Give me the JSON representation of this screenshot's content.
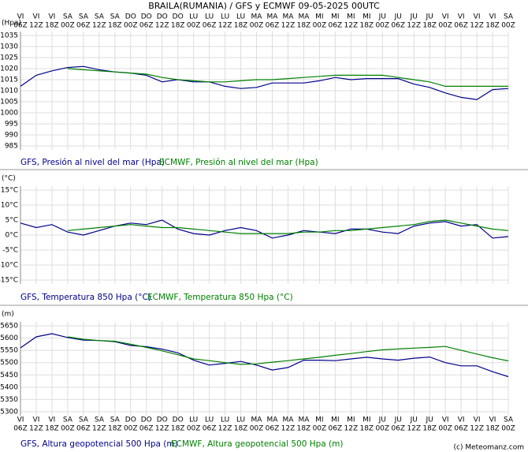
{
  "title": "BRAILA(RUMANIA) / GFS y ECMWF 09-05-2025 00UTC",
  "credit": "(c) Meteomanz.com",
  "x_days": [
    "VI",
    "VI",
    "VI",
    "SA",
    "SA",
    "SA",
    "SA",
    "DO",
    "DO",
    "DO",
    "DO",
    "LU",
    "LU",
    "LU",
    "LU",
    "MA",
    "MA",
    "MA",
    "MA",
    "MI",
    "MI",
    "MI",
    "MI",
    "JU",
    "JU",
    "JU",
    "JU",
    "VI",
    "VI",
    "VI",
    "VI",
    "SA"
  ],
  "x_hours": [
    "06Z",
    "12Z",
    "18Z",
    "00Z",
    "06Z",
    "12Z",
    "18Z",
    "00Z",
    "06Z",
    "12Z",
    "18Z",
    "00Z",
    "06Z",
    "12Z",
    "18Z",
    "00Z",
    "06Z",
    "12Z",
    "18Z",
    "00Z",
    "06Z",
    "12Z",
    "18Z",
    "00Z",
    "06Z",
    "12Z",
    "18Z",
    "00Z",
    "06Z",
    "12Z",
    "18Z",
    "00Z"
  ],
  "chart_data": [
    {
      "type": "line",
      "unit": "(Hpa)",
      "ylim": [
        985,
        1035
      ],
      "grid": true,
      "yticks": [
        985,
        990,
        995,
        1000,
        1005,
        1010,
        1015,
        1020,
        1025,
        1030,
        1035
      ],
      "series": [
        {
          "name": "GFS, Presión al nivel del mar (Hpa)",
          "color": "#00008b",
          "values": [
            1012,
            1017,
            1019,
            1020.5,
            1021,
            1019.5,
            1018.5,
            1018,
            1017,
            1014,
            1015,
            1014,
            1014,
            1012,
            1011,
            1011.5,
            1013.5,
            1013.5,
            1013.5,
            1014.5,
            1016,
            1015,
            1015.5,
            1015.5,
            1015.5,
            1013,
            1011.5,
            1009,
            1007,
            1006,
            1010.5,
            1011
          ]
        },
        {
          "name": "ECMWF, Presión al nivel del mar (Hpa)",
          "color": "#008000",
          "values": [
            null,
            null,
            null,
            1020,
            1019.5,
            1019,
            1018.5,
            1018,
            1017.5,
            1016,
            1015,
            1014.5,
            1014,
            1014,
            1014.5,
            1015,
            1015,
            1015.5,
            1016,
            1016.5,
            1017,
            1017,
            1017,
            1017,
            1016,
            1015,
            1014,
            1012,
            1012,
            1012,
            1012,
            1012
          ]
        }
      ]
    },
    {
      "type": "line",
      "unit": "(°C)",
      "ylim": [
        -15,
        15
      ],
      "grid": true,
      "yticks": [
        {
          "value": 15,
          "label": "15°C"
        },
        {
          "value": 10,
          "label": "10°C"
        },
        {
          "value": 5,
          "label": "5°C"
        },
        {
          "value": 0,
          "label": "0°C"
        },
        {
          "value": -5,
          "label": "-5°C"
        },
        {
          "value": -10,
          "label": "-10°C"
        },
        {
          "value": -15,
          "label": "-15°C"
        }
      ],
      "series": [
        {
          "name": "GFS, Temperatura 850 Hpa (°C)",
          "color": "#00008b",
          "values": [
            4,
            2.5,
            3.5,
            1,
            0,
            1.5,
            3,
            4,
            3.5,
            5,
            2,
            0.5,
            0,
            1.5,
            2.5,
            1.5,
            -1,
            0,
            1.5,
            1,
            0.5,
            2,
            2,
            1,
            0.5,
            3,
            4,
            4.5,
            3,
            3.5,
            -1,
            -0.5
          ]
        },
        {
          "name": "ECMWF, Temperatura 850 Hpa (°C)",
          "color": "#008000",
          "values": [
            null,
            null,
            null,
            1.5,
            2,
            2.5,
            3,
            3.5,
            3,
            2.5,
            2.5,
            2,
            1.5,
            1,
            0.5,
            0.5,
            0.5,
            0.5,
            1,
            1,
            1.5,
            1.5,
            2,
            2.5,
            3,
            3.5,
            4.5,
            5,
            4,
            3,
            2,
            1.5
          ]
        }
      ]
    },
    {
      "type": "line",
      "unit": "(m)",
      "ylim": [
        5300,
        5650
      ],
      "grid": true,
      "yticks": [
        5650,
        5600,
        5550,
        5500,
        5450,
        5400,
        5350,
        5300
      ],
      "series": [
        {
          "name": "GFS, Altura geopotencial 500 Hpa (m)",
          "color": "#00008b",
          "values": [
            5560,
            5605,
            5618,
            5602,
            5592,
            5590,
            5585,
            5570,
            5565,
            5555,
            5540,
            5510,
            5490,
            5497,
            5505,
            5490,
            5470,
            5480,
            5510,
            5510,
            5508,
            5515,
            5522,
            5515,
            5510,
            5518,
            5523,
            5500,
            5487,
            5487,
            5463,
            5443
          ]
        },
        {
          "name": "ECMWF, Altura geopotencial 500 Hpa (m)",
          "color": "#008000",
          "values": [
            null,
            null,
            null,
            5605,
            5595,
            5590,
            5587,
            5575,
            5562,
            5548,
            5532,
            5515,
            5508,
            5500,
            5493,
            5495,
            5502,
            5508,
            5515,
            5522,
            5530,
            5537,
            5545,
            5552,
            5556,
            5559,
            5562,
            5566,
            5550,
            5535,
            5520,
            5507
          ]
        }
      ]
    }
  ]
}
